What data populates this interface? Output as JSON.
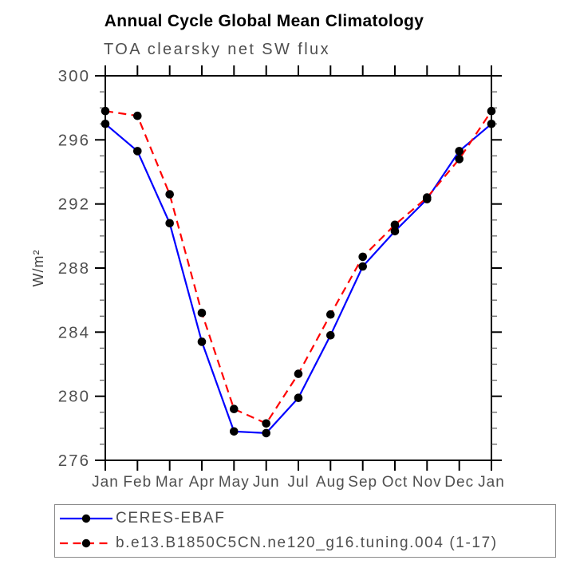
{
  "chart_data": {
    "type": "line",
    "title": "Annual Cycle Global Mean Climatology",
    "subtitle": "TOA clearsky net SW flux",
    "ylabel": "W/m²",
    "categories": [
      "Jan",
      "Feb",
      "Mar",
      "Apr",
      "May",
      "Jun",
      "Jul",
      "Aug",
      "Sep",
      "Oct",
      "Nov",
      "Dec",
      "Jan"
    ],
    "ylim": [
      276,
      300
    ],
    "ytick_major_step": 4,
    "ytick_minor_step": 1,
    "ytick_labels": [
      "276",
      "280",
      "284",
      "288",
      "292",
      "296",
      "300"
    ],
    "grid": false,
    "legend_position": "bottom",
    "series": [
      {
        "name": "CERES-EBAF",
        "color": "#0000ff",
        "style": "solid",
        "marker": "circle",
        "marker_color": "#000000",
        "values": [
          297.0,
          295.3,
          290.8,
          283.4,
          277.8,
          277.7,
          279.9,
          283.8,
          288.1,
          290.3,
          292.3,
          295.3,
          297.0
        ]
      },
      {
        "name": "b.e13.B1850C5CN.ne120_g16.tuning.004 (1-17)",
        "color": "#ff0000",
        "style": "dashed",
        "marker": "circle",
        "marker_color": "#000000",
        "values": [
          297.8,
          297.5,
          292.6,
          285.2,
          279.2,
          278.3,
          281.4,
          285.1,
          288.7,
          290.7,
          292.4,
          294.8,
          297.8
        ]
      }
    ],
    "axis_color": "#000000",
    "tick_label_color": "#4f4f4f",
    "title_color": "#000000",
    "subtitle_color": "#4f4f4f"
  }
}
